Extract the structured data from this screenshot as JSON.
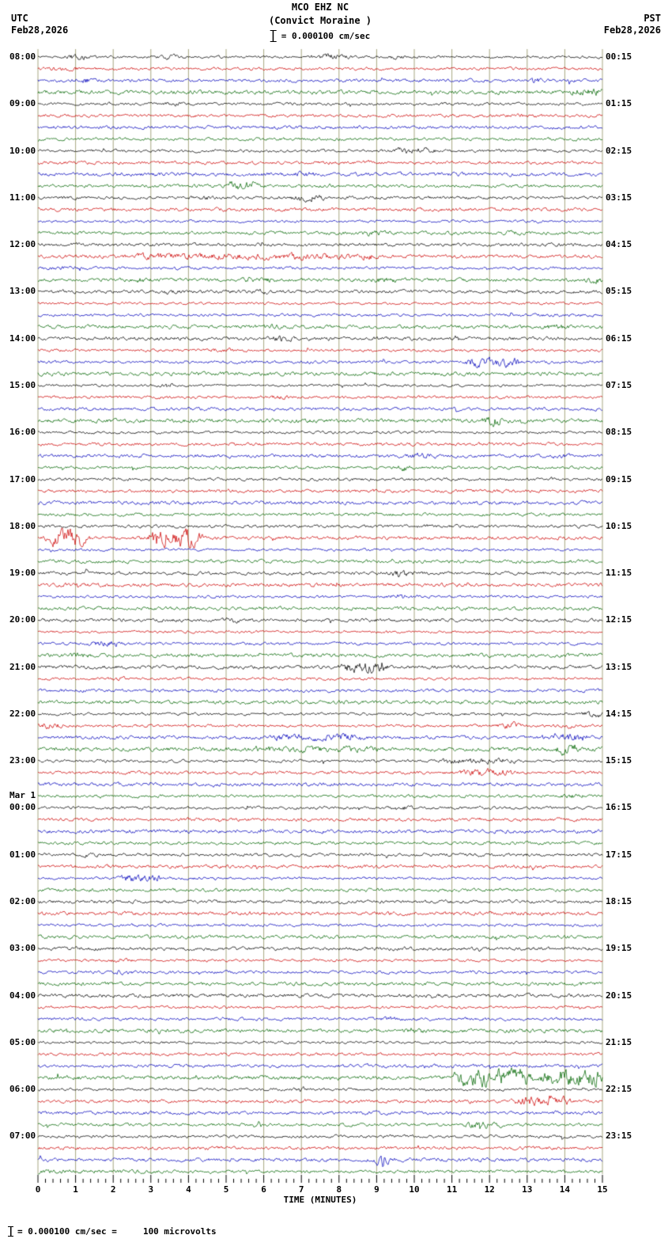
{
  "header": {
    "station_line": "MCO EHZ NC",
    "location_line": "(Convict Moraine )",
    "scale_text": "= 0.000100 cm/sec",
    "utc": {
      "tz": "UTC",
      "date": "Feb28,2026"
    },
    "pst": {
      "tz": "PST",
      "date": "Feb28,2026"
    }
  },
  "axis": {
    "title": "TIME (MINUTES)",
    "tick_labels": [
      "0",
      "1",
      "2",
      "3",
      "4",
      "5",
      "6",
      "7",
      "8",
      "9",
      "10",
      "11",
      "12",
      "13",
      "14",
      "15"
    ]
  },
  "footer": {
    "text": "= 0.000100 cm/sec =     100 microvolts"
  },
  "chart_data": {
    "type": "line",
    "kind": "helicorder-seismogram",
    "title": "MCO EHZ NC (Convict Moraine )",
    "x_axis_label": "TIME (MINUTES)",
    "x_range_minutes": [
      0,
      15
    ],
    "minutes_per_line": 15,
    "lines_per_hour": 4,
    "total_lines": 96,
    "amplitude_scale": "= 0.000100 cm/sec = 100 microvolts",
    "trace_colors": [
      "#000000",
      "#cc0000",
      "#0000bb",
      "#006600"
    ],
    "grid_color": "#8f8f5f",
    "utc_hour_labels": [
      "08:00",
      "09:00",
      "10:00",
      "11:00",
      "12:00",
      "13:00",
      "14:00",
      "15:00",
      "16:00",
      "17:00",
      "18:00",
      "19:00",
      "20:00",
      "21:00",
      "22:00",
      "23:00",
      "00:00",
      "01:00",
      "02:00",
      "03:00",
      "04:00",
      "05:00",
      "06:00",
      "07:00"
    ],
    "day_marker": {
      "text": "Mar 1",
      "before_label_index": 16
    },
    "pst_hour_labels": [
      "00:15",
      "01:15",
      "02:15",
      "03:15",
      "04:15",
      "05:15",
      "06:15",
      "07:15",
      "08:15",
      "09:15",
      "10:15",
      "11:15",
      "12:15",
      "13:15",
      "14:15",
      "15:15",
      "16:15",
      "17:15",
      "18:15",
      "19:15",
      "20:15",
      "21:15",
      "22:15",
      "23:15"
    ],
    "events_legend": "each event = [row_index (0-95 from 08:00 UTC, 4 lines/hour), start_minute, end_minute, relative_amplitude]",
    "events": [
      [
        0,
        0.8,
        1.3,
        2.5
      ],
      [
        0,
        3.3,
        3.8,
        2
      ],
      [
        0,
        7.3,
        8.2,
        2.5
      ],
      [
        0,
        9.3,
        9.7,
        2
      ],
      [
        1,
        0.2,
        1.0,
        1.5
      ],
      [
        2,
        1.0,
        1.5,
        2
      ],
      [
        2,
        12.9,
        13.4,
        1.8
      ],
      [
        3,
        14.2,
        15,
        2
      ],
      [
        4,
        3.4,
        3.9,
        1.8
      ],
      [
        5,
        12.8,
        13.3,
        1.8
      ],
      [
        8,
        9.5,
        10.5,
        2.2
      ],
      [
        10,
        6.8,
        7.3,
        1.6
      ],
      [
        11,
        5.0,
        6.0,
        2.8
      ],
      [
        12,
        4.2,
        4.6,
        1.6
      ],
      [
        12,
        6.8,
        7.6,
        2.6
      ],
      [
        15,
        8.6,
        9.3,
        1.8
      ],
      [
        15,
        12.4,
        13.0,
        1.6
      ],
      [
        17,
        2.5,
        9.0,
        1.8
      ],
      [
        18,
        0,
        1.5,
        1.5
      ],
      [
        19,
        2.6,
        2.9,
        2.2
      ],
      [
        19,
        5.3,
        6.3,
        1.7
      ],
      [
        19,
        8.8,
        9.6,
        1.8
      ],
      [
        19,
        14.6,
        15,
        2
      ],
      [
        20,
        3.4,
        3.7,
        2
      ],
      [
        20,
        5.8,
        6.2,
        1.6
      ],
      [
        23,
        6.0,
        6.5,
        1.5
      ],
      [
        23,
        13.4,
        14.0,
        1.8
      ],
      [
        24,
        6.3,
        6.7,
        2.2
      ],
      [
        25,
        4.5,
        5.5,
        1.6
      ],
      [
        26,
        11.4,
        12.8,
        3.2
      ],
      [
        28,
        3.3,
        3.6,
        2.5
      ],
      [
        29,
        6.3,
        6.7,
        1.6
      ],
      [
        31,
        11.9,
        12.4,
        2.8
      ],
      [
        34,
        9.9,
        10.6,
        2
      ],
      [
        34,
        13.6,
        14.1,
        1.6
      ],
      [
        35,
        9.5,
        9.9,
        2.4
      ],
      [
        41,
        0.3,
        1.3,
        5
      ],
      [
        41,
        3.0,
        4.3,
        6
      ],
      [
        44,
        9.4,
        10.0,
        3
      ],
      [
        46,
        9.4,
        9.8,
        2.2
      ],
      [
        48,
        5.0,
        5.3,
        2
      ],
      [
        50,
        1.4,
        2.3,
        2.2
      ],
      [
        51,
        0.8,
        1.3,
        1.8
      ],
      [
        52,
        8.1,
        9.3,
        3.2
      ],
      [
        53,
        2.0,
        2.4,
        1.6
      ],
      [
        56,
        11.0,
        11.3,
        1.8
      ],
      [
        56,
        14.5,
        15,
        2.8
      ],
      [
        57,
        0,
        0.6,
        2.2
      ],
      [
        57,
        12.3,
        12.7,
        3
      ],
      [
        57,
        13.9,
        14.3,
        1.8
      ],
      [
        58,
        6.2,
        8.7,
        2.2
      ],
      [
        58,
        13.4,
        14.6,
        2.6
      ],
      [
        59,
        5.5,
        9.0,
        1.6
      ],
      [
        59,
        13.8,
        14.3,
        2.8
      ],
      [
        60,
        10.7,
        12.6,
        2.2
      ],
      [
        61,
        11.3,
        12.6,
        2.4
      ],
      [
        63,
        13.9,
        14.4,
        1.8
      ],
      [
        64,
        9.4,
        9.8,
        2
      ],
      [
        68,
        1.2,
        1.6,
        1.6
      ],
      [
        70,
        2.2,
        3.4,
        3
      ],
      [
        77,
        2.0,
        2.4,
        2
      ],
      [
        78,
        2.0,
        2.5,
        1.6
      ],
      [
        82,
        9.0,
        9.6,
        1.5
      ],
      [
        83,
        9.8,
        10.2,
        2.2
      ],
      [
        87,
        11.1,
        13.1,
        4.5
      ],
      [
        87,
        13.4,
        15,
        4
      ],
      [
        88,
        6.8,
        7.2,
        2
      ],
      [
        89,
        12.7,
        14.1,
        3.2
      ],
      [
        91,
        11.4,
        12.3,
        2.6
      ],
      [
        94,
        9.05,
        9.25,
        6
      ],
      [
        95,
        0,
        3,
        1.3
      ]
    ]
  }
}
